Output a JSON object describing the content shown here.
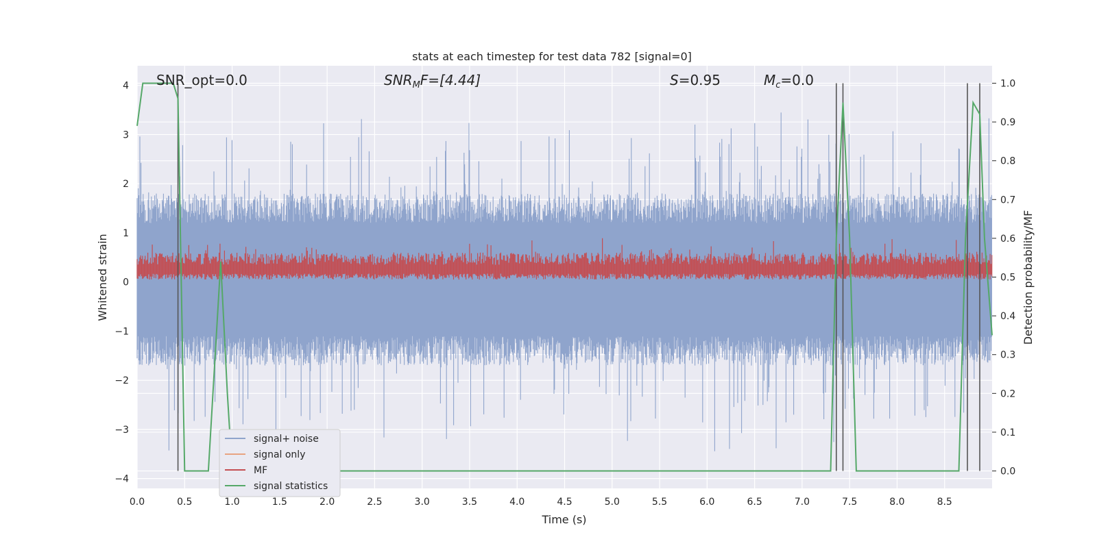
{
  "chart_data": {
    "type": "line",
    "title": "stats at each timestep for test data 782 [signal=0]",
    "xlabel": "Time (s)",
    "ylabel": "Whitened strain",
    "y2label": "Detection probability/MF",
    "xlim": [
      0.0,
      9.0
    ],
    "ylim": [
      -4.2,
      4.4
    ],
    "y2lim": [
      -0.045,
      1.045
    ],
    "xticks": [
      "0.0",
      "0.5",
      "1.0",
      "1.5",
      "2.0",
      "2.5",
      "3.0",
      "3.5",
      "4.0",
      "4.5",
      "5.0",
      "5.5",
      "6.0",
      "6.5",
      "7.0",
      "7.5",
      "8.0",
      "8.5"
    ],
    "yticks": [
      "4",
      "3",
      "2",
      "1",
      "0",
      "−1",
      "−2",
      "−3",
      "−4"
    ],
    "y2ticks": [
      "1.0",
      "0.9",
      "0.8",
      "0.7",
      "0.6",
      "0.5",
      "0.4",
      "0.3",
      "0.2",
      "0.1",
      "0.0"
    ],
    "grid": true,
    "legend_placement": "lower-left",
    "annotations": {
      "snr_opt": "SNR_opt=0.0",
      "snr_mf_main": "SNR",
      "snr_mf_sub": "M",
      "snr_mf_rest": "F=[4.44]",
      "s_main": "S",
      "s_rest": "=0.95",
      "mc_main": "M",
      "mc_sub": "c",
      "mc_rest": "=0.0"
    },
    "series": [
      {
        "name": "signal+ noise",
        "color": "#8fa4cc",
        "style": "dense noise band approx. between -1.5 and 1.7, spikes to about ±3.5"
      },
      {
        "name": "signal only",
        "color": "#e8a380",
        "values": []
      },
      {
        "name": "MF",
        "color": "#c44e52",
        "style": "dense noise band approx. between 0.0 and 0.8 on left axis"
      },
      {
        "name": "signal statistics",
        "color": "#55a868",
        "axis": "right",
        "x": [
          0.0,
          0.06,
          0.1,
          0.2,
          0.3,
          0.38,
          0.43,
          0.5,
          0.75,
          0.88,
          0.95,
          1.0,
          1.05,
          3.4,
          3.5,
          7.3,
          7.36,
          7.43,
          7.5,
          7.57,
          7.62,
          8.65,
          8.72,
          8.8,
          8.87,
          8.92,
          9.0
        ],
        "values": [
          0.89,
          1.0,
          1.0,
          1.0,
          1.0,
          1.0,
          0.96,
          0.0,
          0.0,
          0.54,
          0.2,
          0.0,
          0.0,
          0.0,
          0.0,
          0.0,
          0.6,
          0.95,
          0.6,
          0.0,
          0.0,
          0.0,
          0.6,
          0.95,
          0.92,
          0.6,
          0.35
        ]
      }
    ],
    "vertical_lines": [
      0.43,
      7.36,
      7.43,
      8.74,
      8.87
    ]
  },
  "legend": {
    "items": [
      {
        "label": "signal+ noise",
        "color": "#8fa4cc"
      },
      {
        "label": "signal only",
        "color": "#e8a380"
      },
      {
        "label": "MF",
        "color": "#c44e52"
      },
      {
        "label": "signal statistics",
        "color": "#55a868"
      }
    ]
  }
}
